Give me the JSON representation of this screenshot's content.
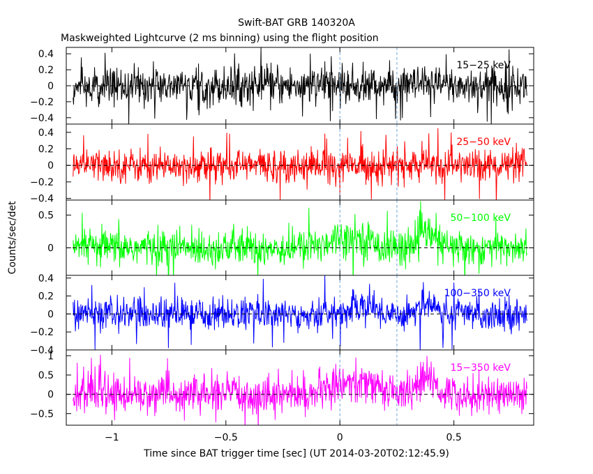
{
  "chart_data": {
    "type": "line",
    "title": "Swift-BAT GRB 140320A",
    "subtitle": "Maskweighted Lightcurve (2 ms binning) using the flight position",
    "xlabel": "Time since BAT trigger time [sec] (UT 2014-03-20T02:12:45.9)",
    "ylabel": "Counts/sec/det",
    "xlim": [
      -1.2,
      0.85
    ],
    "x_ticks": [
      -1,
      -0.5,
      0,
      0.5
    ],
    "x_tick_labels": [
      "−1",
      "−0.5",
      "0",
      "0.5"
    ],
    "x_data_range": [
      -1.17,
      0.82
    ],
    "bin_width_sec": 0.002,
    "grid": false,
    "reference_lines": {
      "horizontal_y": 0,
      "vertical_x": [
        0,
        0.25
      ]
    },
    "panels": [
      {
        "name": "15−25 keV",
        "color": "#000000",
        "ylim": [
          -0.48,
          0.48
        ],
        "y_ticks": [
          -0.4,
          -0.2,
          0,
          0.2,
          0.4
        ],
        "y_tick_labels": [
          "−0.4",
          "−0.2",
          "0",
          "0.2",
          "0.4"
        ],
        "noise_sigma": 0.12,
        "spikes": 0.45,
        "features": []
      },
      {
        "name": "25−50 keV",
        "color": "#ff0000",
        "ylim": [
          -0.42,
          0.5
        ],
        "y_ticks": [
          -0.4,
          -0.2,
          0,
          0.2,
          0.4
        ],
        "y_tick_labels": [
          "−0.4",
          "−0.2",
          "0",
          "0.2",
          "0.4"
        ],
        "noise_sigma": 0.1,
        "spikes": 0.45,
        "features": []
      },
      {
        "name": "50−100 keV",
        "color": "#00ff00",
        "ylim": [
          -0.42,
          0.73
        ],
        "y_ticks": [
          0,
          0.5
        ],
        "y_tick_labels": [
          "0",
          "0.5"
        ],
        "noise_sigma": 0.14,
        "spikes": 0.6,
        "features": [
          {
            "center": 0.0,
            "width": 0.06,
            "amp": 0.15
          },
          {
            "center": 0.1,
            "width": 0.05,
            "amp": 0.1
          },
          {
            "center": 0.38,
            "width": 0.04,
            "amp": 0.22
          }
        ]
      },
      {
        "name": "100−350 keV",
        "color": "#0000ff",
        "ylim": [
          -0.4,
          0.43
        ],
        "y_ticks": [
          -0.4,
          -0.2,
          0,
          0.2,
          0.4
        ],
        "y_tick_labels": [
          "−0.4",
          "−0.2",
          "0",
          "0.2",
          "0.4"
        ],
        "noise_sigma": 0.09,
        "spikes": 0.4,
        "features": [
          {
            "center": 0.1,
            "width": 0.05,
            "amp": 0.1
          },
          {
            "center": 0.38,
            "width": 0.04,
            "amp": 0.12
          }
        ]
      },
      {
        "name": "15−350 keV",
        "color": "#ff00ff",
        "ylim": [
          -0.8,
          1.15
        ],
        "y_ticks": [
          -0.5,
          0,
          0.5,
          1
        ],
        "y_tick_labels": [
          "−0.5",
          "0",
          "0.5",
          "1"
        ],
        "noise_sigma": 0.24,
        "spikes": 0.95,
        "features": [
          {
            "center": 0.02,
            "width": 0.06,
            "amp": 0.3
          },
          {
            "center": 0.15,
            "width": 0.06,
            "amp": 0.2
          },
          {
            "center": 0.38,
            "width": 0.04,
            "amp": 0.4
          }
        ]
      }
    ]
  }
}
